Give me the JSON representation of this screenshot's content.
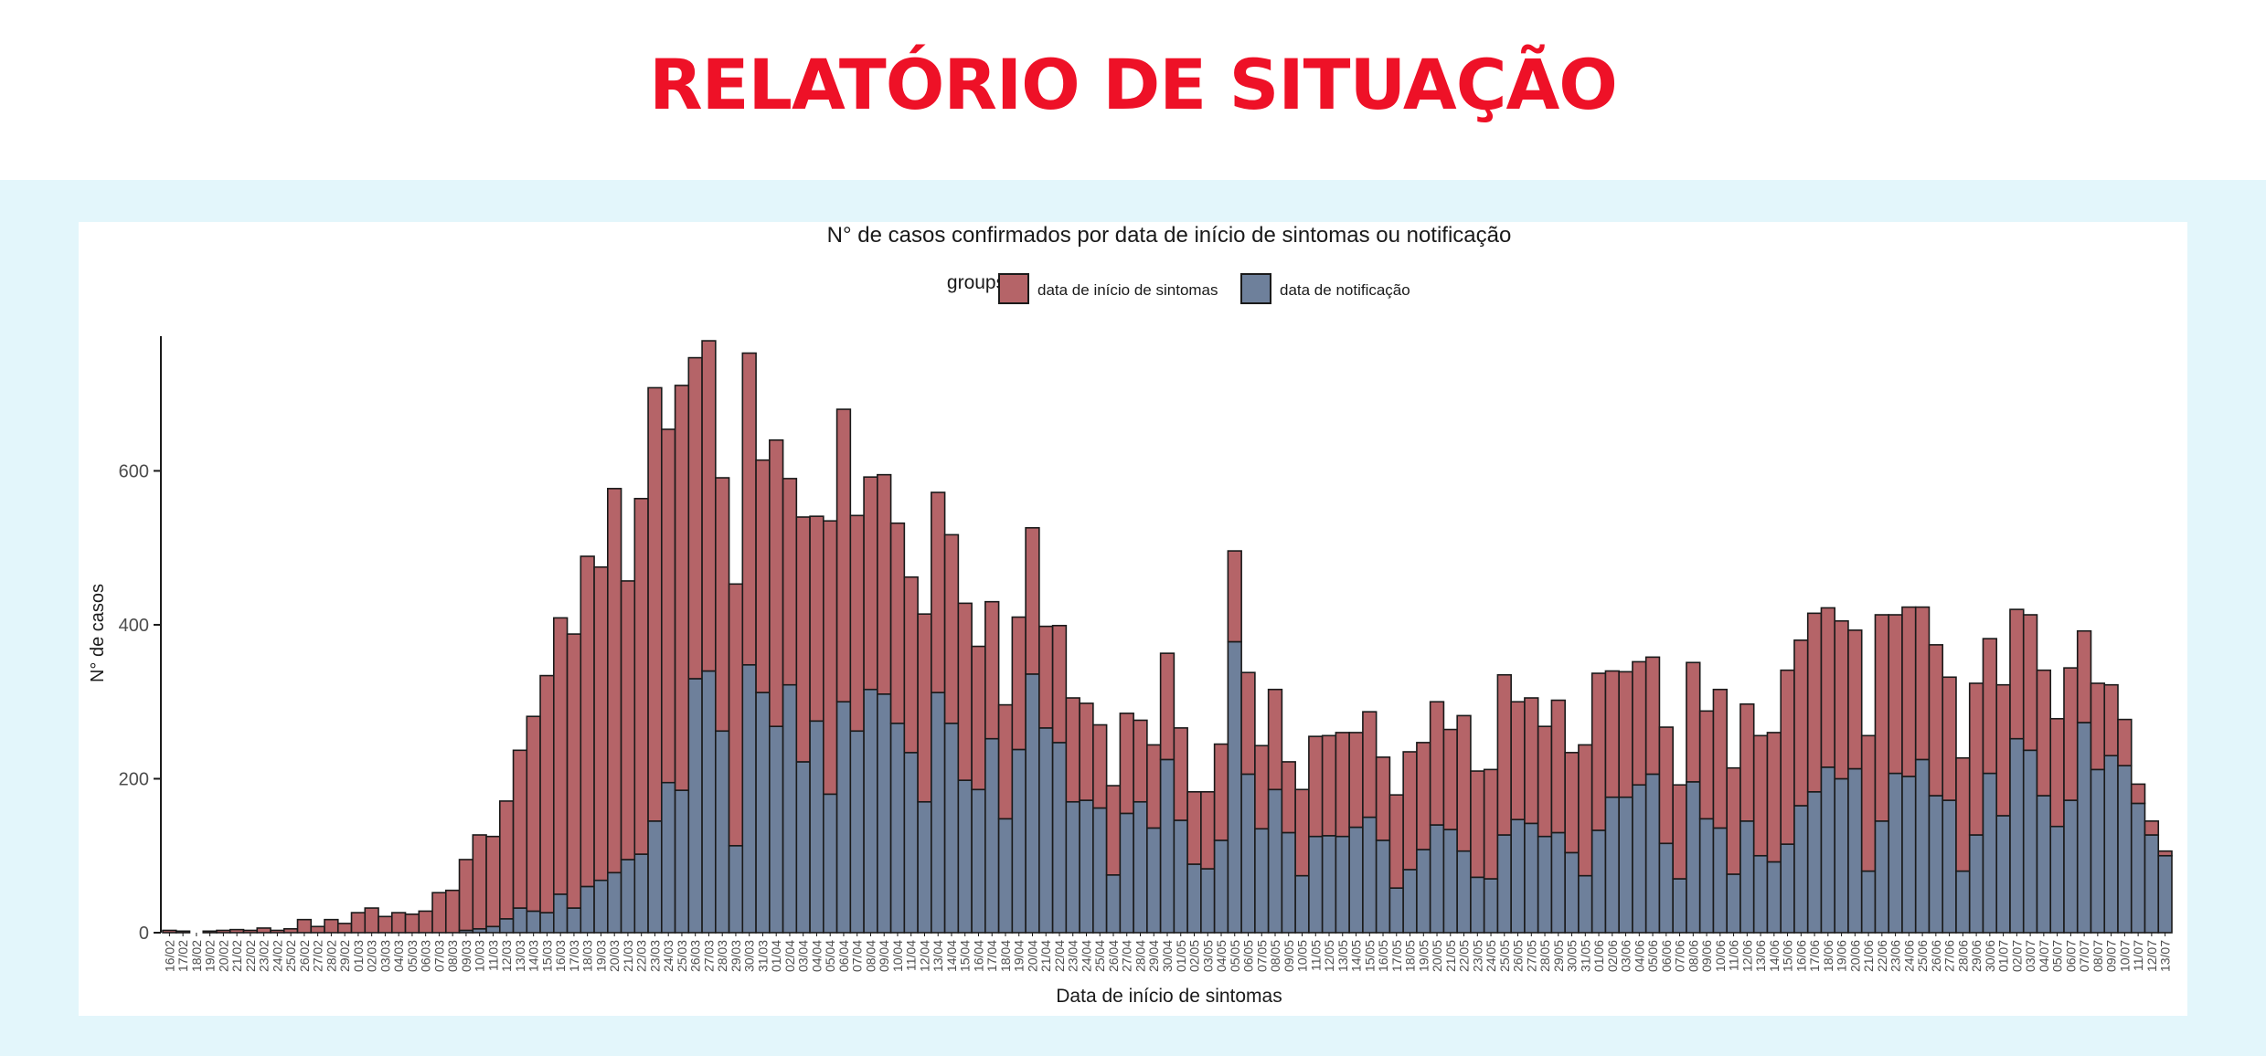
{
  "report": {
    "title": "RELATÓRIO DE SITUAÇÃO"
  },
  "colors": {
    "title": "#ee1127",
    "band_background": "#e3f6fb",
    "symptoms": "#b56468",
    "notification": "#6e809b",
    "bar_outline": "#1a1a1a"
  },
  "chart_data": {
    "type": "bar",
    "stacked": true,
    "title": "N° de casos confirmados por data de início de sintomas ou notificação",
    "legend_title": "groups",
    "legend_position": "top",
    "xlabel": "Data de início de sintomas",
    "ylabel": "N° de casos",
    "ylim": [
      0,
      775
    ],
    "yticks": [
      0,
      200,
      400,
      600
    ],
    "grid": false,
    "categories": [
      "16/02",
      "17/02",
      "18/02",
      "19/02",
      "20/02",
      "21/02",
      "22/02",
      "23/02",
      "24/02",
      "25/02",
      "26/02",
      "27/02",
      "28/02",
      "29/02",
      "01/03",
      "02/03",
      "03/03",
      "04/03",
      "05/03",
      "06/03",
      "07/03",
      "08/03",
      "09/03",
      "10/03",
      "11/03",
      "12/03",
      "13/03",
      "14/03",
      "15/03",
      "16/03",
      "17/03",
      "18/03",
      "19/03",
      "20/03",
      "21/03",
      "22/03",
      "23/03",
      "24/03",
      "25/03",
      "26/03",
      "27/03",
      "28/03",
      "29/03",
      "30/03",
      "31/03",
      "01/04",
      "02/04",
      "03/04",
      "04/04",
      "05/04",
      "06/04",
      "07/04",
      "08/04",
      "09/04",
      "10/04",
      "11/04",
      "12/04",
      "13/04",
      "14/04",
      "15/04",
      "16/04",
      "17/04",
      "18/04",
      "19/04",
      "20/04",
      "21/04",
      "22/04",
      "23/04",
      "24/04",
      "25/04",
      "26/04",
      "27/04",
      "28/04",
      "29/04",
      "30/04",
      "01/05",
      "02/05",
      "03/05",
      "04/05",
      "05/05",
      "06/05",
      "07/05",
      "08/05",
      "09/05",
      "10/05",
      "11/05",
      "12/05",
      "13/05",
      "14/05",
      "15/05",
      "16/05",
      "17/05",
      "18/05",
      "19/05",
      "20/05",
      "21/05",
      "22/05",
      "23/05",
      "24/05",
      "25/05",
      "26/05",
      "27/05",
      "28/05",
      "29/05",
      "30/05",
      "31/05",
      "01/06",
      "02/06",
      "03/06",
      "04/06",
      "05/06",
      "06/06",
      "07/06",
      "08/06",
      "09/06",
      "10/06",
      "11/06",
      "12/06",
      "13/06",
      "14/06",
      "15/06",
      "16/06",
      "17/06",
      "18/06",
      "19/06",
      "20/06",
      "21/06",
      "22/06",
      "23/06",
      "24/06",
      "25/06",
      "26/06",
      "27/06",
      "28/06",
      "29/06",
      "30/06",
      "01/07",
      "02/07",
      "03/07",
      "04/07",
      "05/07",
      "06/07",
      "07/07",
      "08/07",
      "09/07",
      "10/07",
      "11/07",
      "12/07",
      "13/07"
    ],
    "series": [
      {
        "name": "data de notificação",
        "values": [
          0,
          0,
          0,
          0,
          0,
          0,
          0,
          0,
          0,
          0,
          0,
          0,
          0,
          0,
          0,
          0,
          0,
          0,
          0,
          0,
          0,
          0,
          3,
          5,
          8,
          18,
          32,
          28,
          26,
          50,
          32,
          60,
          68,
          78,
          95,
          102,
          145,
          195,
          185,
          330,
          340,
          262,
          113,
          348,
          312,
          268,
          322,
          222,
          275,
          180,
          300,
          262,
          316,
          310,
          272,
          234,
          170,
          312,
          272,
          198,
          186,
          252,
          148,
          238,
          336,
          266,
          247,
          170,
          172,
          162,
          75,
          155,
          170,
          136,
          225,
          146,
          89,
          83,
          120,
          378,
          206,
          135,
          186,
          130,
          74,
          125,
          126,
          125,
          137,
          150,
          120,
          58,
          82,
          108,
          140,
          134,
          106,
          72,
          70,
          127,
          147,
          142,
          125,
          130,
          104,
          74,
          133,
          176,
          176,
          192,
          206,
          116,
          70,
          196,
          148,
          136,
          76,
          145,
          100,
          92,
          115,
          165,
          183,
          215,
          200,
          213,
          80,
          145,
          207,
          203,
          225,
          178,
          172,
          80,
          127,
          207,
          152,
          252,
          237,
          178,
          138,
          172,
          273,
          212,
          230,
          217,
          168,
          127,
          100
        ]
      },
      {
        "name": "data de início de sintomas",
        "values": [
          3,
          2,
          0,
          2,
          3,
          4,
          3,
          6,
          3,
          5,
          17,
          8,
          17,
          12,
          26,
          32,
          21,
          26,
          24,
          28,
          52,
          55,
          92,
          122,
          117,
          153,
          205,
          253,
          308,
          359,
          356,
          429,
          407,
          499,
          362,
          462,
          563,
          459,
          526,
          417,
          429,
          329,
          340,
          405,
          302,
          372,
          268,
          318,
          266,
          355,
          380,
          280,
          276,
          285,
          260,
          228,
          244,
          260,
          245,
          230,
          186,
          178,
          148,
          172,
          190,
          132,
          152,
          135,
          126,
          108,
          116,
          130,
          106,
          108,
          138,
          120,
          94,
          100,
          125,
          118,
          132,
          108,
          130,
          92,
          112,
          130,
          130,
          135,
          123,
          137,
          108,
          121,
          153,
          139,
          160,
          130,
          176,
          138,
          142,
          208,
          153,
          163,
          143,
          172,
          130,
          170,
          204,
          164,
          163,
          160,
          152,
          151,
          122,
          155,
          140,
          180,
          138,
          152,
          156,
          168,
          226,
          215,
          232,
          207,
          205,
          180,
          176,
          268,
          206,
          220,
          198,
          196,
          160,
          147,
          197,
          175,
          170,
          168,
          176,
          163,
          140,
          172,
          119,
          112,
          92,
          60,
          25,
          18,
          6
        ]
      }
    ]
  }
}
